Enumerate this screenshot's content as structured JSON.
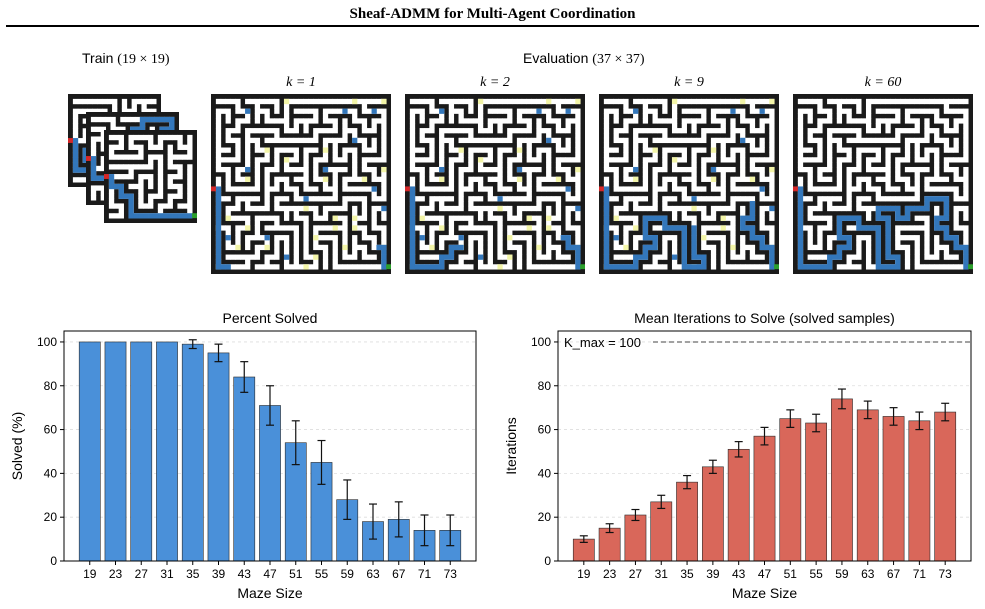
{
  "header": {
    "title": "Sheaf-ADMM for Multi-Agent Coordination"
  },
  "train": {
    "label": "Train",
    "size": "(19 × 19)"
  },
  "evaluation": {
    "label": "Evaluation",
    "size": "(37 × 37)",
    "panels": [
      {
        "k": "k = 1"
      },
      {
        "k": "k = 2"
      },
      {
        "k": "k = 9"
      },
      {
        "k": "k = 60"
      }
    ]
  },
  "colors": {
    "maze_wall": "#1a1a1a",
    "maze_path": "#ffffff",
    "solution": "#3377bb",
    "partial": "#f3f5a8",
    "start": "#d62728",
    "goal": "#2ca02c",
    "bar_left": "#4a90d9",
    "bar_right": "#d9675a"
  },
  "chart_data": [
    {
      "type": "bar",
      "title": "Percent Solved",
      "xlabel": "Maze Size",
      "ylabel": "Solved (%)",
      "ylim": [
        0,
        105
      ],
      "yticks": [
        0,
        20,
        40,
        60,
        80,
        100
      ],
      "grid": "horizontal dashed",
      "categories": [
        "19",
        "23",
        "27",
        "31",
        "35",
        "39",
        "43",
        "47",
        "51",
        "55",
        "59",
        "63",
        "67",
        "71",
        "73"
      ],
      "values": [
        100,
        100,
        100,
        100,
        99,
        95,
        84,
        71,
        54,
        45,
        28,
        18,
        19,
        14,
        14
      ],
      "errors": [
        0,
        0,
        0,
        0,
        2,
        4,
        7,
        9,
        10,
        10,
        9,
        8,
        8,
        7,
        7
      ]
    },
    {
      "type": "bar",
      "title": "Mean Iterations to Solve (solved samples)",
      "xlabel": "Maze Size",
      "ylabel": "Iterations",
      "ylim": [
        0,
        105
      ],
      "yticks": [
        0,
        20,
        40,
        60,
        80,
        100
      ],
      "grid": "horizontal dashed",
      "reference_line": {
        "value": 100,
        "label": "K_max = 100"
      },
      "categories": [
        "19",
        "23",
        "27",
        "31",
        "35",
        "39",
        "43",
        "47",
        "51",
        "55",
        "59",
        "63",
        "67",
        "71",
        "73"
      ],
      "values": [
        10,
        15,
        21,
        27,
        36,
        43,
        51,
        57,
        65,
        63,
        74,
        69,
        66,
        64,
        68
      ],
      "errors": [
        1.5,
        2,
        2.5,
        3,
        3,
        3,
        3.5,
        4,
        4,
        4,
        4.5,
        4,
        4,
        4,
        4
      ]
    }
  ]
}
